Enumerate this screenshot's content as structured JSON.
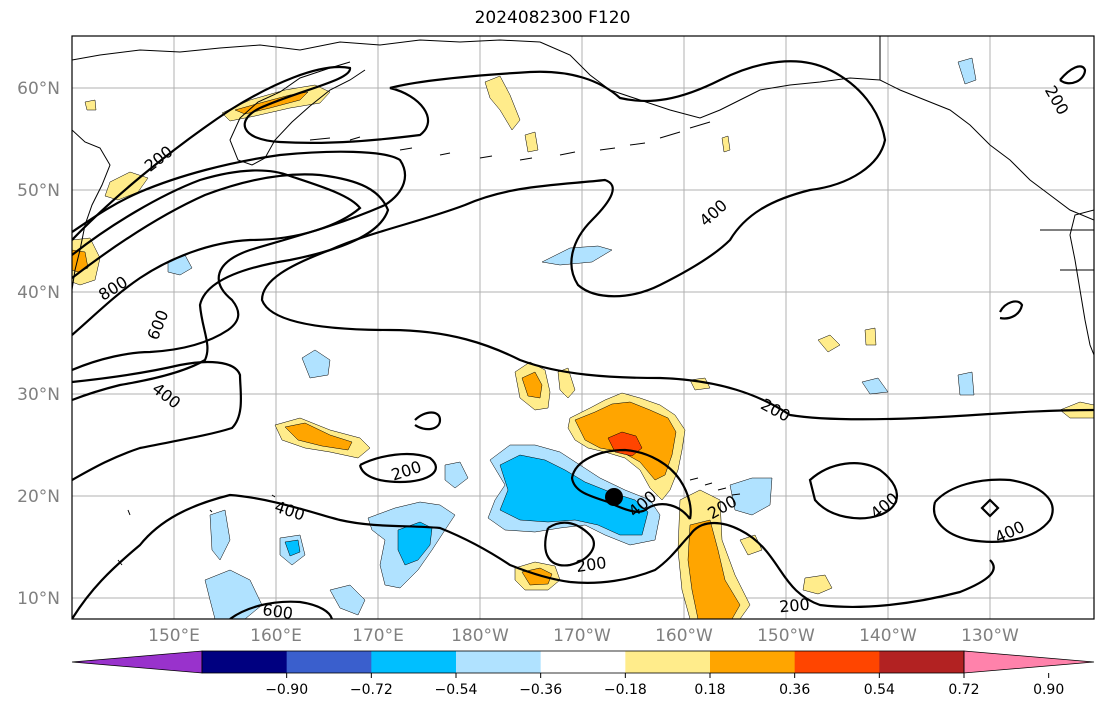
{
  "title": "2024082300 F120",
  "latitudes": [
    "60°N",
    "50°N",
    "40°N",
    "30°N",
    "20°N",
    "10°N"
  ],
  "longitudes": [
    "150°E",
    "160°E",
    "170°E",
    "180°W",
    "170°W",
    "160°W",
    "150°W",
    "140°W",
    "130°W"
  ],
  "contour_labels": [
    "200",
    "800",
    "600",
    "400",
    "200",
    "400",
    "200",
    "200",
    "400",
    "400",
    "400",
    "200",
    "600",
    "200",
    "200",
    "400",
    "400"
  ],
  "colorbar": {
    "ticks": [
      "−0.90",
      "−0.72",
      "−0.54",
      "−0.36",
      "−0.18",
      "0.18",
      "0.36",
      "0.54",
      "0.72",
      "0.90"
    ],
    "colors": [
      "#9932cc",
      "#000080",
      "#3a5fcd",
      "#00bfff",
      "#b0e2ff",
      "#ffffff",
      "#ffec8b",
      "#ffa500",
      "#ff4500",
      "#b22222",
      "#ff82ab"
    ]
  },
  "colors": {
    "coastline": "#000000",
    "grid": "#b0b0b0",
    "contour": "#000000",
    "center_marker": "#000000"
  }
}
